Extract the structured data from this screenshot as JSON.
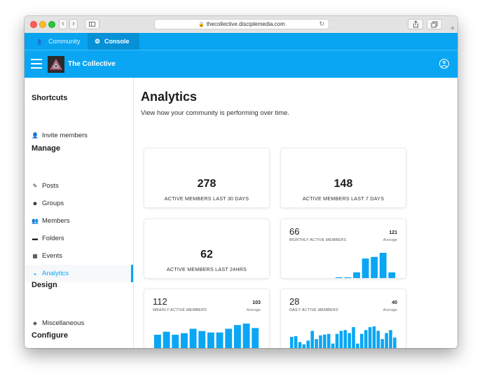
{
  "browser": {
    "url": "thecollective.disciplemedia.com"
  },
  "tabs": {
    "community": "Community",
    "console": "Console"
  },
  "header": {
    "brand": "The Collective"
  },
  "sidebar": {
    "shortcuts_title": "Shortcuts",
    "invite": "Invite members",
    "manage_title": "Manage",
    "manage_items": [
      "Posts",
      "Groups",
      "Members",
      "Folders",
      "Events",
      "Analytics"
    ],
    "design_title": "Design",
    "design_items": [
      "Miscellaneous"
    ],
    "configure_title": "Configure"
  },
  "page": {
    "title": "Analytics",
    "subtitle": "View how your community is performing over time."
  },
  "stats": {
    "last30": {
      "value": "278",
      "label": "ACTIVE MEMBERS LAST 30 DAYS"
    },
    "last7": {
      "value": "148",
      "label": "ACTIVE MEMBERS LAST 7 DAYS"
    },
    "last24": {
      "value": "62",
      "label": "ACTIVE MEMBERS LAST 24HRS"
    }
  },
  "sparkcards": {
    "monthly": {
      "value": "66",
      "label": "MONTHLY ACTIVE MEMBERS",
      "avg": "121",
      "avg_label": "Average"
    },
    "weekly": {
      "value": "112",
      "label": "WEEKLY ACTIVE MEMBERS",
      "avg": "103",
      "avg_label": "Average"
    },
    "daily": {
      "value": "28",
      "label": "DAILY ACTIVE MEMBERS",
      "avg": "40",
      "avg_label": "Average"
    }
  },
  "chart_data": [
    {
      "type": "bar",
      "name": "monthly",
      "values": [
        1,
        1,
        14,
        48,
        52,
        62,
        14
      ],
      "ylim": [
        0,
        62
      ]
    },
    {
      "type": "bar",
      "name": "weekly",
      "values": [
        18,
        22,
        18,
        20,
        26,
        23,
        21,
        21,
        26,
        31,
        33,
        27
      ],
      "ylim": [
        0,
        33
      ]
    },
    {
      "type": "bar",
      "name": "daily",
      "values": [
        15,
        16,
        8,
        5,
        10,
        23,
        12,
        17,
        18,
        19,
        6,
        19,
        23,
        24,
        20,
        28,
        6,
        19,
        24,
        28,
        29,
        23,
        12,
        20,
        24,
        14
      ],
      "ylim": [
        0,
        29
      ]
    }
  ],
  "colors": {
    "accent": "#0aa6f4",
    "tab_active": "#0690d6",
    "bar": "#0aa6f4"
  }
}
